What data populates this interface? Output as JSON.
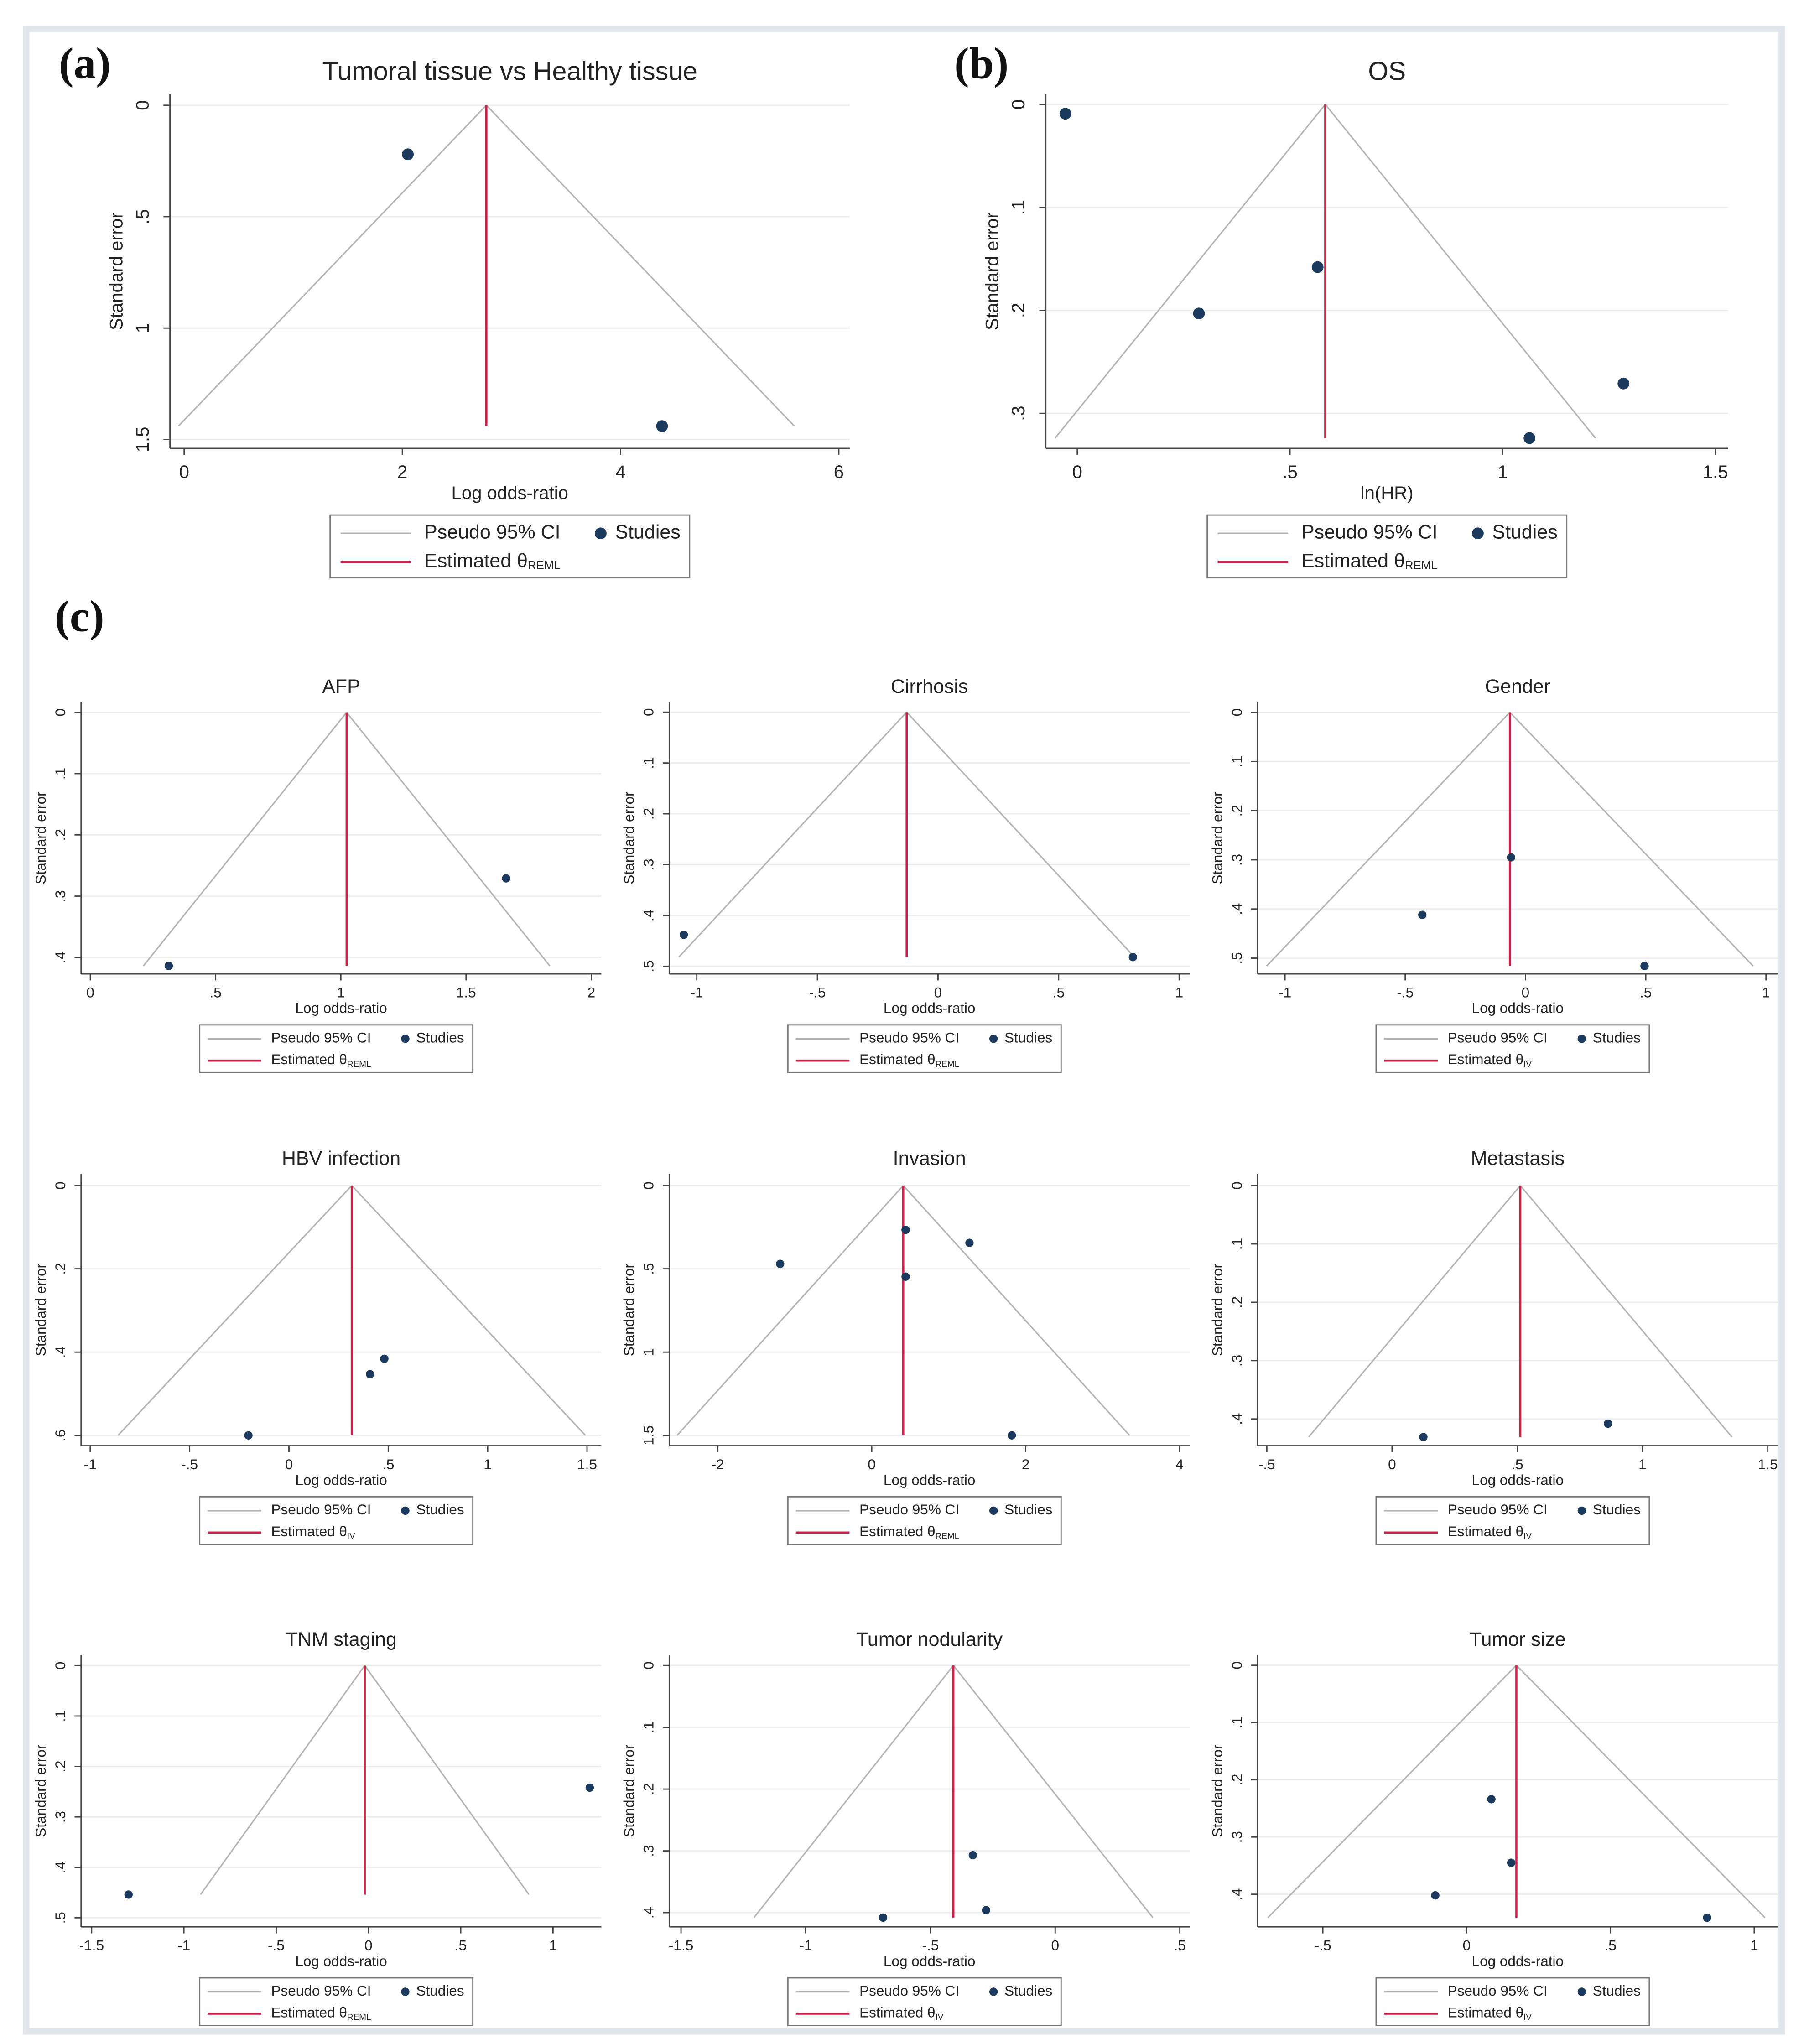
{
  "chart_data": [
    {
      "type": "funnel",
      "panel_label": "(a)",
      "title": "Tumoral tissue vs Healthy tissue",
      "xlabel": "Log odds-ratio",
      "ylabel": "Standard error",
      "xlim": [
        -0.13,
        6.1
      ],
      "ylim": [
        -0.05,
        1.54
      ],
      "y_reversed": true,
      "grid": true,
      "xticks": [
        0,
        2,
        4,
        6
      ],
      "yticks": [
        0,
        {
          "value": 0.5,
          "label": ".5"
        },
        1,
        1.5
      ],
      "series": [
        {
          "name": "Pseudo 95% CI",
          "color": "#b4b4b4"
        },
        {
          "name": "Studies",
          "color": "#1b3a5e",
          "x": [
            2.05,
            4.38
          ],
          "values": [
            0.22,
            1.44
          ]
        },
        {
          "name": "Estimated θ",
          "subscript": "REML",
          "color": "#c8234a",
          "value": 2.77
        }
      ]
    },
    {
      "type": "funnel",
      "panel_label": "(b)",
      "title": "OS",
      "xlabel": "ln(HR)",
      "ylabel": "Standard error",
      "xlim": [
        -0.074,
        1.53
      ],
      "ylim": [
        -0.01,
        0.334
      ],
      "y_reversed": true,
      "grid": true,
      "xticks": [
        0,
        {
          "value": 0.5,
          "label": ".5"
        },
        1,
        1.5
      ],
      "yticks": [
        0,
        {
          "value": 0.1,
          "label": ".1"
        },
        {
          "value": 0.2,
          "label": ".2"
        },
        {
          "value": 0.3,
          "label": ".3"
        }
      ],
      "series": [
        {
          "name": "Pseudo 95% CI",
          "color": "#b4b4b4"
        },
        {
          "name": "Studies",
          "color": "#1b3a5e",
          "x": [
            -0.028,
            0.286,
            0.565,
            1.063,
            1.284
          ],
          "values": [
            0.009,
            0.203,
            0.158,
            0.324,
            0.271
          ]
        },
        {
          "name": "Estimated θ",
          "subscript": "REML",
          "color": "#c8234a",
          "value": 0.583
        }
      ]
    },
    {
      "type": "funnel",
      "panel_label": "(c)",
      "title": "AFP",
      "xlabel": "Log odds-ratio",
      "ylabel": "Standard error",
      "xlim": [
        -0.037,
        2.04
      ],
      "ylim": [
        -0.017,
        0.427
      ],
      "y_reversed": true,
      "grid": true,
      "xticks": [
        0,
        {
          "value": 0.5,
          "label": ".5"
        },
        1,
        1.5,
        2
      ],
      "yticks": [
        0,
        {
          "value": 0.1,
          "label": ".1"
        },
        {
          "value": 0.2,
          "label": ".2"
        },
        {
          "value": 0.3,
          "label": ".3"
        },
        {
          "value": 0.4,
          "label": ".4"
        }
      ],
      "series": [
        {
          "name": "Pseudo 95% CI",
          "color": "#b4b4b4"
        },
        {
          "name": "Studies",
          "color": "#1b3a5e",
          "x": [
            0.313,
            1.66
          ],
          "values": [
            0.414,
            0.271
          ]
        },
        {
          "name": "Estimated θ",
          "subscript": "REML",
          "color": "#c8234a",
          "value": 1.023
        }
      ]
    },
    {
      "type": "funnel",
      "title": "Cirrhosis",
      "xlabel": "Log odds-ratio",
      "ylabel": "Standard error",
      "xlim": [
        -1.114,
        1.043
      ],
      "ylim": [
        -0.02,
        0.515
      ],
      "y_reversed": true,
      "grid": true,
      "xticks": [
        -1,
        {
          "value": -0.5,
          "label": "-.5"
        },
        0,
        {
          "value": 0.5,
          "label": ".5"
        },
        1
      ],
      "yticks": [
        0,
        {
          "value": 0.1,
          "label": ".1"
        },
        {
          "value": 0.2,
          "label": ".2"
        },
        {
          "value": 0.3,
          "label": ".3"
        },
        {
          "value": 0.4,
          "label": ".4"
        },
        {
          "value": 0.5,
          "label": ".5"
        }
      ],
      "series": [
        {
          "name": "Pseudo 95% CI",
          "color": "#b4b4b4"
        },
        {
          "name": "Studies",
          "color": "#1b3a5e",
          "x": [
            -1.054,
            0.808
          ],
          "values": [
            0.438,
            0.482
          ]
        },
        {
          "name": "Estimated θ",
          "subscript": "REML",
          "color": "#c8234a",
          "value": -0.13
        }
      ]
    },
    {
      "type": "funnel",
      "title": "Gender",
      "xlabel": "Log odds-ratio",
      "ylabel": "Standard error",
      "xlim": [
        -1.114,
        1.049
      ],
      "ylim": [
        -0.021,
        0.532
      ],
      "y_reversed": true,
      "grid": true,
      "xticks": [
        -1,
        {
          "value": -0.5,
          "label": "-.5"
        },
        0,
        {
          "value": 0.5,
          "label": ".5"
        },
        1
      ],
      "yticks": [
        0,
        {
          "value": 0.1,
          "label": ".1"
        },
        {
          "value": 0.2,
          "label": ".2"
        },
        {
          "value": 0.3,
          "label": ".3"
        },
        {
          "value": 0.4,
          "label": ".4"
        },
        {
          "value": 0.5,
          "label": ".5"
        }
      ],
      "series": [
        {
          "name": "Pseudo 95% CI",
          "color": "#b4b4b4"
        },
        {
          "name": "Studies",
          "color": "#1b3a5e",
          "x": [
            -0.429,
            -0.06,
            0.495
          ],
          "values": [
            0.412,
            0.295,
            0.516
          ]
        },
        {
          "name": "Estimated θ",
          "subscript": "IV",
          "color": "#c8234a",
          "value": -0.065
        }
      ]
    },
    {
      "type": "funnel",
      "title": "HBV infection",
      "xlabel": "Log odds-ratio",
      "ylabel": "Standard error",
      "xlim": [
        -1.046,
        1.572
      ],
      "ylim": [
        -0.028,
        0.625
      ],
      "y_reversed": true,
      "grid": true,
      "xticks": [
        -1,
        {
          "value": -0.5,
          "label": "-.5"
        },
        0,
        {
          "value": 0.5,
          "label": ".5"
        },
        1,
        1.5
      ],
      "yticks": [
        0,
        {
          "value": 0.2,
          "label": ".2"
        },
        {
          "value": 0.4,
          "label": ".4"
        },
        {
          "value": 0.6,
          "label": ".6"
        }
      ],
      "series": [
        {
          "name": "Pseudo 95% CI",
          "color": "#b4b4b4"
        },
        {
          "name": "Studies",
          "color": "#1b3a5e",
          "x": [
            -0.204,
            0.408,
            0.48
          ],
          "values": [
            0.6,
            0.453,
            0.416
          ]
        },
        {
          "name": "Estimated θ",
          "subscript": "IV",
          "color": "#c8234a",
          "value": 0.316
        }
      ]
    },
    {
      "type": "funnel",
      "title": "Invasion",
      "xlabel": "Log odds-ratio",
      "ylabel": "Standard error",
      "xlim": [
        -2.63,
        4.13
      ],
      "ylim": [
        -0.07,
        1.5625
      ],
      "y_reversed": true,
      "grid": true,
      "xticks": [
        -2,
        0,
        2,
        4
      ],
      "yticks": [
        0,
        {
          "value": 0.5,
          "label": ".5"
        },
        1,
        1.5
      ],
      "series": [
        {
          "name": "Pseudo 95% CI",
          "color": "#b4b4b4"
        },
        {
          "name": "Studies",
          "color": "#1b3a5e",
          "x": [
            -1.19,
            0.44,
            0.44,
            1.27,
            1.82
          ],
          "values": [
            0.47,
            0.266,
            0.547,
            0.344,
            1.5
          ]
        },
        {
          "name": "Estimated θ",
          "subscript": "REML",
          "color": "#c8234a",
          "value": 0.41
        }
      ]
    },
    {
      "type": "funnel",
      "title": "Metastasis",
      "xlabel": "Log odds-ratio",
      "ylabel": "Standard error",
      "xlim": [
        -0.537,
        1.54
      ],
      "ylim": [
        -0.02,
        0.446
      ],
      "y_reversed": true,
      "grid": true,
      "xticks": [
        {
          "value": -0.5,
          "label": "-.5"
        },
        0,
        {
          "value": 0.5,
          "label": ".5"
        },
        1,
        1.5
      ],
      "yticks": [
        0,
        {
          "value": 0.1,
          "label": ".1"
        },
        {
          "value": 0.2,
          "label": ".2"
        },
        {
          "value": 0.3,
          "label": ".3"
        },
        {
          "value": 0.4,
          "label": ".4"
        }
      ],
      "series": [
        {
          "name": "Pseudo 95% CI",
          "color": "#b4b4b4"
        },
        {
          "name": "Studies",
          "color": "#1b3a5e",
          "x": [
            0.125,
            0.862
          ],
          "values": [
            0.431,
            0.408
          ]
        },
        {
          "name": "Estimated θ",
          "subscript": "IV",
          "color": "#c8234a",
          "value": 0.512
        }
      ]
    },
    {
      "type": "funnel",
      "title": "TNM staging",
      "xlabel": "Log odds-ratio",
      "ylabel": "Standard error",
      "xlim": [
        -1.557,
        1.262
      ],
      "ylim": [
        -0.021,
        0.518
      ],
      "y_reversed": true,
      "grid": true,
      "xticks": [
        -1.5,
        -1,
        {
          "value": -0.5,
          "label": "-.5"
        },
        0,
        {
          "value": 0.5,
          "label": ".5"
        },
        1
      ],
      "yticks": [
        0,
        {
          "value": 0.1,
          "label": ".1"
        },
        {
          "value": 0.2,
          "label": ".2"
        },
        {
          "value": 0.3,
          "label": ".3"
        },
        {
          "value": 0.4,
          "label": ".4"
        },
        {
          "value": 0.5,
          "label": ".5"
        }
      ],
      "series": [
        {
          "name": "Pseudo 95% CI",
          "color": "#b4b4b4"
        },
        {
          "name": "Studies",
          "color": "#1b3a5e",
          "x": [
            -1.3,
            1.199
          ],
          "values": [
            0.454,
            0.242
          ]
        },
        {
          "name": "Estimated θ",
          "subscript": "REML",
          "color": "#c8234a",
          "value": -0.02
        }
      ]
    },
    {
      "type": "funnel",
      "title": "Tumor nodularity",
      "xlabel": "Log odds-ratio",
      "ylabel": "Standard error",
      "xlim": [
        -1.547,
        0.539
      ],
      "ylim": [
        -0.017,
        0.423
      ],
      "y_reversed": true,
      "grid": true,
      "xticks": [
        -1.5,
        -1,
        {
          "value": -0.5,
          "label": "-.5"
        },
        0,
        {
          "value": 0.5,
          "label": ".5"
        }
      ],
      "yticks": [
        0,
        {
          "value": 0.1,
          "label": ".1"
        },
        {
          "value": 0.2,
          "label": ".2"
        },
        {
          "value": 0.3,
          "label": ".3"
        },
        {
          "value": 0.4,
          "label": ".4"
        }
      ],
      "series": [
        {
          "name": "Pseudo 95% CI",
          "color": "#b4b4b4"
        },
        {
          "name": "Studies",
          "color": "#1b3a5e",
          "x": [
            -0.69,
            -0.33,
            -0.277
          ],
          "values": [
            0.408,
            0.307,
            0.396
          ]
        },
        {
          "name": "Estimated θ",
          "subscript": "IV",
          "color": "#c8234a",
          "value": -0.408
        }
      ]
    },
    {
      "type": "funnel",
      "title": "Tumor size",
      "xlabel": "Log odds-ratio",
      "ylabel": "Standard error",
      "xlim": [
        -0.727,
        1.082
      ],
      "ylim": [
        -0.018,
        0.457
      ],
      "y_reversed": true,
      "grid": true,
      "xticks": [
        {
          "value": -0.5,
          "label": "-.5"
        },
        0,
        {
          "value": 0.5,
          "label": ".5"
        },
        1
      ],
      "yticks": [
        0,
        {
          "value": 0.1,
          "label": ".1"
        },
        {
          "value": 0.2,
          "label": ".2"
        },
        {
          "value": 0.3,
          "label": ".3"
        },
        {
          "value": 0.4,
          "label": ".4"
        }
      ],
      "series": [
        {
          "name": "Pseudo 95% CI",
          "color": "#b4b4b4"
        },
        {
          "name": "Studies",
          "color": "#1b3a5e",
          "x": [
            -0.109,
            0.086,
            0.155,
            0.836
          ],
          "values": [
            0.402,
            0.234,
            0.345,
            0.441
          ]
        },
        {
          "name": "Estimated θ",
          "subscript": "IV",
          "color": "#c8234a",
          "value": 0.173
        }
      ]
    }
  ]
}
